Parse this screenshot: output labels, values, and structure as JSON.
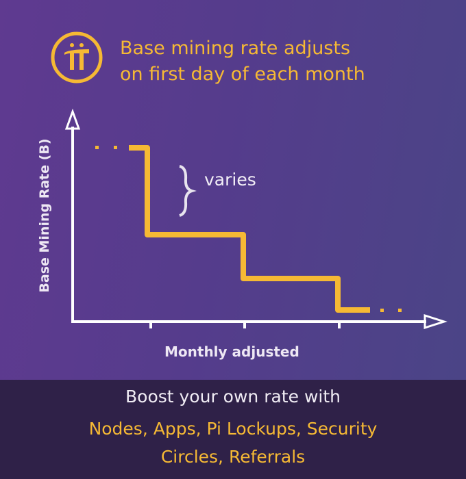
{
  "title": {
    "line1": "Base mining rate adjusts",
    "line2": "on first day of each month"
  },
  "logo": {
    "icon": "pi-network-logo",
    "color": "#f6b934"
  },
  "diagram": {
    "ylabel": "Base Mining Rate (B)",
    "xlabel": "Monthly adjusted",
    "annotation": "varies",
    "line_color": "#f6b934",
    "axis_color": "#ffffff"
  },
  "footer": {
    "line1": "Boost your own rate with",
    "line2": "Nodes, Apps, Pi Lockups, Security",
    "line3": "Circles, Referrals"
  }
}
